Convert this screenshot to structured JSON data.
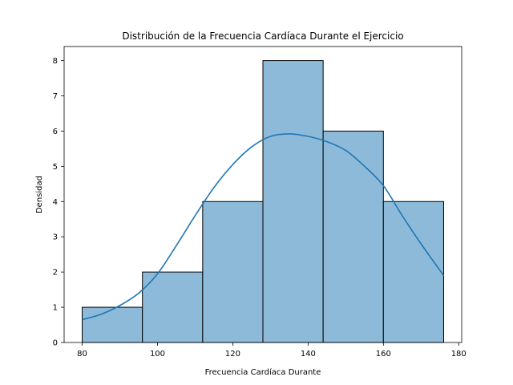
{
  "chart_data": {
    "type": "bar",
    "subtype": "histogram",
    "title": "Distribución de la Frecuencia Cardíaca Durante el Ejercicio",
    "xlabel": "Frecuencia Cardíaca Durante",
    "ylabel": "Densidad",
    "xlim": [
      75.2,
      180.8
    ],
    "ylim": [
      0,
      8.4
    ],
    "xticks": [
      80,
      100,
      120,
      140,
      160,
      180
    ],
    "yticks": [
      0,
      1,
      2,
      3,
      4,
      5,
      6,
      7,
      8
    ],
    "grid": false,
    "bins": [
      {
        "start": 80,
        "end": 96,
        "value": 1
      },
      {
        "start": 96,
        "end": 112,
        "value": 2
      },
      {
        "start": 112,
        "end": 128,
        "value": 4
      },
      {
        "start": 128,
        "end": 144,
        "value": 8
      },
      {
        "start": 144,
        "end": 160,
        "value": 6
      },
      {
        "start": 160,
        "end": 176,
        "value": 4
      }
    ],
    "kde": {
      "x": [
        80,
        85,
        90,
        95,
        100,
        105,
        110,
        115,
        120,
        125,
        130,
        135,
        140,
        145,
        150,
        155,
        160,
        165,
        170,
        176
      ],
      "y": [
        0.65,
        0.8,
        1.05,
        1.4,
        1.95,
        2.75,
        3.6,
        4.4,
        5.05,
        5.55,
        5.85,
        5.92,
        5.85,
        5.7,
        5.45,
        5.0,
        4.45,
        3.6,
        2.8,
        1.9
      ]
    },
    "colors": {
      "bar_fill": "#8EBAD9",
      "bar_edge": "#000000",
      "kde_line": "#1F77B4"
    }
  }
}
